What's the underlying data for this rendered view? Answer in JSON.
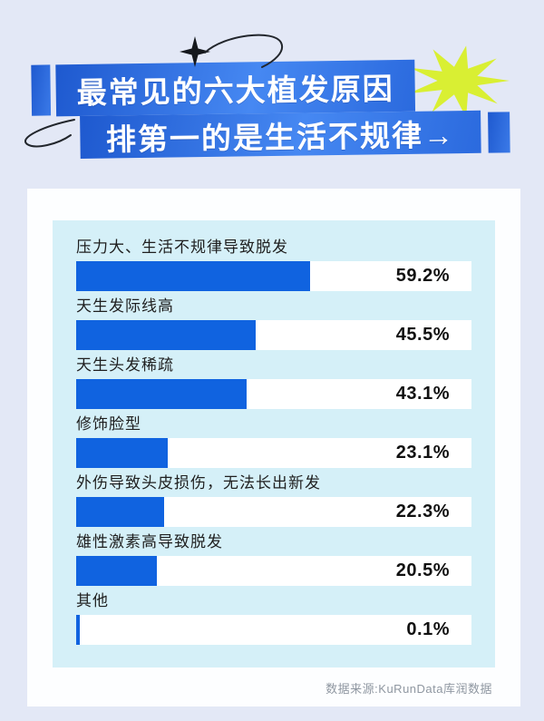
{
  "header": {
    "title_line1": "最常见的六大植发原因",
    "title_line2": "排第一的是生活不规律→"
  },
  "chart_data": {
    "type": "bar",
    "orientation": "horizontal",
    "title": "最常见的六大植发原因，排第一的是生活不规律",
    "unit": "%",
    "xlim": [
      0,
      100
    ],
    "grid": false,
    "legend": false,
    "bars": [
      {
        "label": "压力大、生活不规律导致脱发",
        "value": 59.2,
        "display": "59.2%"
      },
      {
        "label": "天生发际线高",
        "value": 45.5,
        "display": "45.5%"
      },
      {
        "label": "天生头发稀疏",
        "value": 43.1,
        "display": "43.1%"
      },
      {
        "label": "修饰脸型",
        "value": 23.1,
        "display": "23.1%"
      },
      {
        "label": "外伤导致头皮损伤，无法长出新发",
        "value": 22.3,
        "display": "22.3%"
      },
      {
        "label": "雄性激素高导致脱发",
        "value": 20.5,
        "display": "20.5%"
      },
      {
        "label": "其他",
        "value": 0.1,
        "display": "0.1%"
      }
    ],
    "colors": {
      "bar": "#1063e0",
      "track": "#ffffff",
      "panel": "#d5f0f8"
    }
  },
  "footer": {
    "source": "数据来源:KuRunData库润数据"
  },
  "theme": {
    "page_bg": "#e3e8f6",
    "card_bg": "#fdfeff",
    "banner_gradient_start": "#1e59cf",
    "banner_gradient_end": "#4688f2",
    "starburst": "#d9ef33",
    "label_color": "#1f1f1f",
    "value_color": "#111111",
    "source_color": "#8f97a1"
  }
}
